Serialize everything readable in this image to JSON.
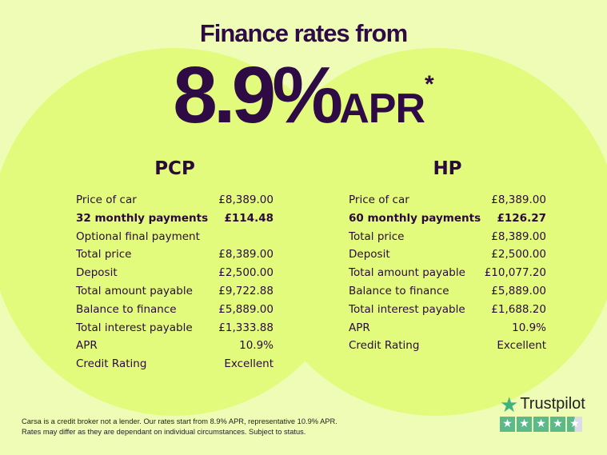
{
  "headline": "Finance rates from",
  "rate": {
    "value": "8.9%",
    "unit": "APR",
    "marker": "*"
  },
  "plans": [
    {
      "title": "PCP",
      "rows": [
        {
          "label": "Price of car",
          "value": "£8,389.00",
          "bold": false
        },
        {
          "label": "32 monthly payments",
          "value": "£114.48",
          "bold": true
        },
        {
          "label": "Optional final payment",
          "value": "",
          "bold": false
        },
        {
          "label": "Total price",
          "value": "£8,389.00",
          "bold": false
        },
        {
          "label": "Deposit",
          "value": "£2,500.00",
          "bold": false
        },
        {
          "label": "Total amount payable",
          "value": "£9,722.88",
          "bold": false
        },
        {
          "label": "Balance to finance",
          "value": "£5,889.00",
          "bold": false
        },
        {
          "label": "Total interest payable",
          "value": "£1,333.88",
          "bold": false
        },
        {
          "label": "APR",
          "value": "10.9%",
          "bold": false
        },
        {
          "label": "Credit Rating",
          "value": "Excellent",
          "bold": false
        }
      ]
    },
    {
      "title": "HP",
      "rows": [
        {
          "label": "Price of car",
          "value": "£8,389.00",
          "bold": false
        },
        {
          "label": "60 monthly payments",
          "value": "£126.27",
          "bold": true
        },
        {
          "label": "Total price",
          "value": "£8,389.00",
          "bold": false
        },
        {
          "label": "Deposit",
          "value": "£2,500.00",
          "bold": false
        },
        {
          "label": "Total amount payable",
          "value": "£10,077.20",
          "bold": false
        },
        {
          "label": "Balance to finance",
          "value": "£5,889.00",
          "bold": false
        },
        {
          "label": "Total interest payable",
          "value": "£1,688.20",
          "bold": false
        },
        {
          "label": "APR",
          "value": "10.9%",
          "bold": false
        },
        {
          "label": "Credit Rating",
          "value": "Excellent",
          "bold": false
        }
      ]
    }
  ],
  "disclaimer": [
    "Carsa is a credit broker not a lender. Our rates start from 8.9% APR, representative 10.9% APR.",
    "Rates may differ as they are dependant on individual circumstances. Subject to status."
  ],
  "trustpilot": {
    "label": "Trustpilot",
    "rating_stars": 4.5,
    "max_stars": 5,
    "icon": "star-icon"
  },
  "colors": {
    "background": "#eefcb6",
    "circle": "#e3fb7c",
    "text": "#2e0b45",
    "trustpilot_green": "#5bb98a"
  }
}
